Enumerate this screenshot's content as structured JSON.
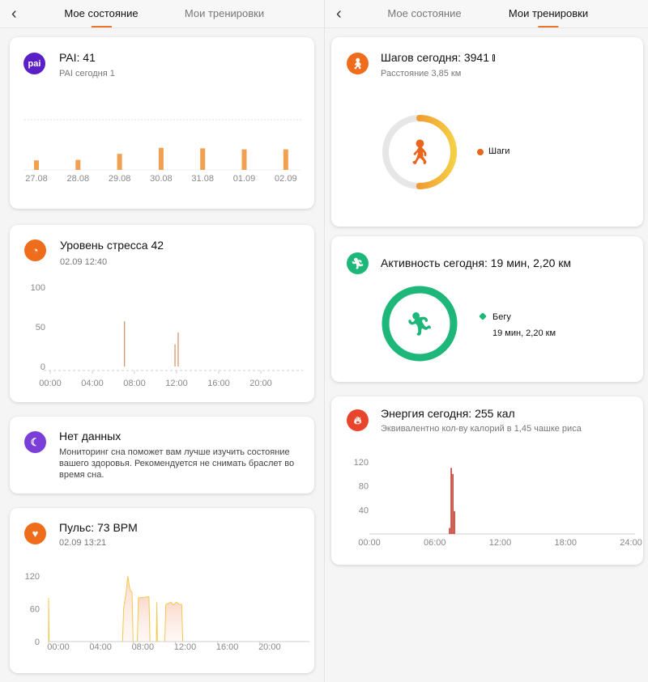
{
  "left": {
    "tabs": [
      {
        "label": "Мое состояние",
        "active": true
      },
      {
        "label": "Мои тренировки",
        "active": false
      }
    ],
    "pai": {
      "icon": "pai-icon",
      "icon_text": "pai",
      "title": "PAI: 41",
      "subtitle": "PAI сегодня 1",
      "chart_data": {
        "type": "bar",
        "categories": [
          "27.08",
          "28.08",
          "29.08",
          "30.08",
          "31.08",
          "01.09",
          "02.09"
        ],
        "values": [
          19,
          20,
          32,
          44,
          43,
          41,
          41
        ],
        "ylim": [
          0,
          100
        ],
        "color": "#f0a050"
      }
    },
    "stress": {
      "icon": "stress-gauge-icon",
      "title": "Уровень стресса 42",
      "subtitle": "02.09 12:40",
      "chart_data": {
        "type": "bar",
        "x_unit": "hour",
        "xlim": [
          0,
          24
        ],
        "ylim": [
          0,
          100
        ],
        "yticks": [
          100,
          50,
          0
        ],
        "xticks": [
          "00:00",
          "04:00",
          "08:00",
          "12:00",
          "16:00",
          "20:00"
        ],
        "bars": [
          {
            "x": 7.0,
            "y": 57
          },
          {
            "x": 11.8,
            "y": 28
          },
          {
            "x": 12.1,
            "y": 43
          }
        ],
        "color": "#d9956a"
      }
    },
    "sleep": {
      "icon": "sleep-moon-icon",
      "title": "Нет данных",
      "text": "Мониторинг сна поможет вам лучше изучить состояние вашего здоровья. Рекомендуется не снимать браслет во время сна."
    },
    "pulse": {
      "icon": "heart-icon",
      "title": "Пульс: 73 BPM",
      "subtitle": "02.09 13:21",
      "chart_data": {
        "type": "area",
        "x_unit": "hour",
        "xlim": [
          0,
          24
        ],
        "ylim": [
          0,
          120
        ],
        "yticks": [
          120,
          60,
          0
        ],
        "xticks": [
          "00:00",
          "04:00",
          "08:00",
          "12:00",
          "16:00",
          "20:00"
        ],
        "segments": [
          [
            [
              0,
              0
            ],
            [
              0,
              80
            ],
            [
              0.05,
              0
            ]
          ],
          [
            [
              7.0,
              0
            ],
            [
              7.1,
              60
            ],
            [
              7.3,
              85
            ],
            [
              7.5,
              120
            ],
            [
              7.7,
              95
            ],
            [
              7.9,
              90
            ],
            [
              8.0,
              0
            ]
          ],
          [
            [
              8.4,
              0
            ],
            [
              8.5,
              80
            ],
            [
              9.5,
              82
            ],
            [
              9.6,
              0
            ]
          ],
          [
            [
              10.2,
              0
            ],
            [
              10.25,
              72
            ],
            [
              10.3,
              0
            ]
          ],
          [
            [
              11.0,
              0
            ],
            [
              11.1,
              68
            ],
            [
              11.6,
              72
            ],
            [
              11.8,
              67
            ],
            [
              12.1,
              72
            ],
            [
              12.4,
              68
            ],
            [
              12.6,
              68
            ],
            [
              12.7,
              0
            ]
          ]
        ],
        "color": "#f2c94c"
      }
    }
  },
  "right": {
    "tabs": [
      {
        "label": "Мое состояние",
        "active": false
      },
      {
        "label": "Мои тренировки",
        "active": true
      }
    ],
    "steps": {
      "icon": "walking-icon",
      "title": "Шагов сегодня: 3941",
      "subtitle": "Расстояние 3,85 км",
      "progress": 0.5,
      "legend": "Шаги",
      "color": "#e8661e"
    },
    "activity": {
      "icon": "running-icon",
      "title": "Активность сегодня: 19 мин, 2,20 км",
      "legend": "Бегу",
      "legend_value": "19 мин, 2,20 км",
      "progress": 1.0,
      "color": "#1db77a"
    },
    "energy": {
      "icon": "flame-icon",
      "title": "Энергия сегодня: 255 кал",
      "subtitle": "Эквивалентно кол-ву калорий в 1,45 чашке риса",
      "chart_data": {
        "type": "bar",
        "x_unit": "hour",
        "xlim": [
          0,
          24
        ],
        "ylim": [
          0,
          120
        ],
        "yticks": [
          120,
          80,
          40
        ],
        "xticks": [
          "00:00",
          "06:00",
          "12:00",
          "18:00",
          "24:00"
        ],
        "bars": [
          {
            "x": 7.3,
            "y": 10
          },
          {
            "x": 7.45,
            "y": 110
          },
          {
            "x": 7.6,
            "y": 100
          },
          {
            "x": 7.75,
            "y": 38
          }
        ],
        "color": "#c0392b"
      }
    }
  }
}
